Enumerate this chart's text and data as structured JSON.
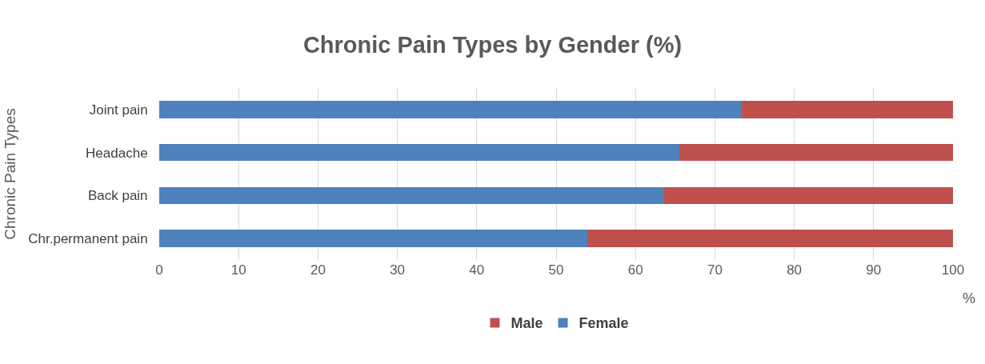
{
  "chart_data": {
    "type": "bar",
    "orientation": "horizontal",
    "stacked": true,
    "title": "Chronic Pain Types by Gender (%)",
    "xlabel": "%",
    "ylabel": "Chronic Pain Types",
    "categories": [
      "Joint pain",
      "Headache",
      "Back pain",
      "Chr.permanent pain"
    ],
    "series": [
      {
        "name": "Female",
        "color": "#4f81bd",
        "values": [
          73.4,
          65.5,
          63.6,
          53.9
        ]
      },
      {
        "name": "Male",
        "color": "#c0504d",
        "values": [
          26.6,
          34.5,
          36.4,
          46.1
        ]
      }
    ],
    "xlim": [
      0,
      100
    ],
    "xticks": [
      0,
      10,
      20,
      30,
      40,
      50,
      60,
      70,
      80,
      90,
      100
    ],
    "grid": "x",
    "legend": "bottom"
  }
}
